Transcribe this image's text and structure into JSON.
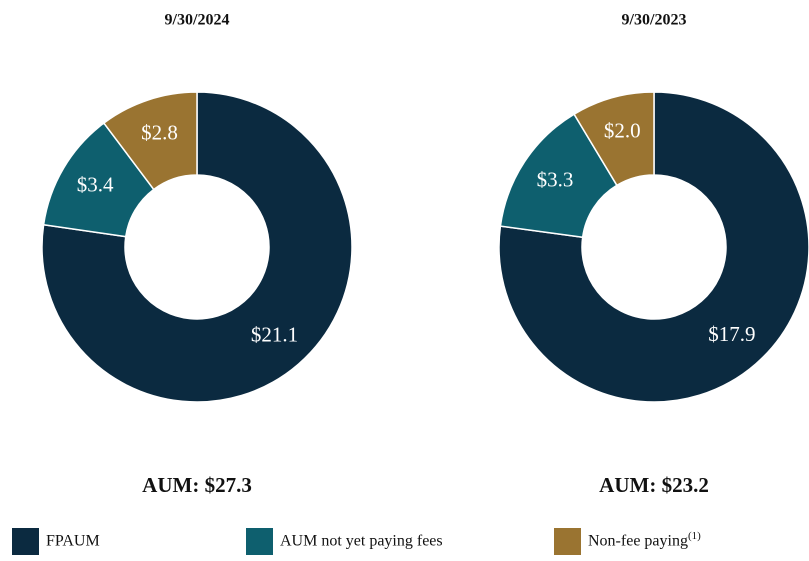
{
  "chart_data": [
    {
      "type": "pie",
      "title": "9/30/2024",
      "annotation": "AUM: $27.3",
      "categories": [
        "FPAUM",
        "AUM not yet paying fees",
        "Non-fee paying"
      ],
      "values": [
        21.1,
        3.4,
        2.8
      ],
      "value_labels": [
        "$21.1",
        "$3.4",
        "$2.8"
      ],
      "colors": [
        "#0b2a40",
        "#0e5f6e",
        "#9a7431"
      ],
      "legend_footnote": "(1)"
    },
    {
      "type": "pie",
      "title": "9/30/2023",
      "annotation": "AUM: $23.2",
      "categories": [
        "FPAUM",
        "AUM not yet paying fees",
        "Non-fee paying"
      ],
      "values": [
        17.9,
        3.3,
        2.0
      ],
      "value_labels": [
        "$17.9",
        "$3.3",
        "$2.0"
      ],
      "colors": [
        "#0b2a40",
        "#0e5f6e",
        "#9a7431"
      ]
    }
  ]
}
